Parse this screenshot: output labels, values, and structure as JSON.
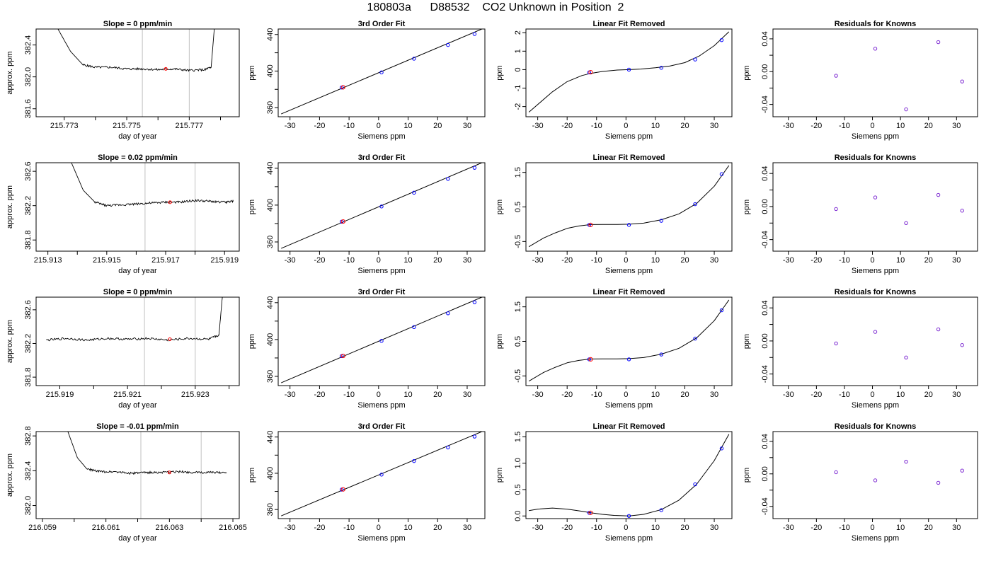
{
  "page": {
    "title": "180803a      D88532    CO2 Unknown in Position  2"
  },
  "colors": {
    "axis": "#000000",
    "line": "#000000",
    "marker_blue": "#0000ff",
    "marker_red": "#ff0000",
    "marker_purple": "#7d2ad2",
    "vline": "#c0c0c0"
  },
  "chart_data": [
    {
      "type": "line",
      "title": "Slope =  0  ppm/min",
      "xlabel": "day of year",
      "ylabel": "approx. ppm",
      "xlim": [
        215.7721,
        215.7786
      ],
      "ylim": [
        381.5,
        382.6
      ],
      "xticks": [
        215.773,
        215.774,
        215.775,
        215.776,
        215.777,
        215.778
      ],
      "xtick_labels": [
        "215.773",
        "",
        "215.775",
        "",
        "215.777",
        ""
      ],
      "yticks": [
        381.6,
        382.0,
        382.4
      ],
      "ytick_labels": [
        "381.6",
        "382.0",
        "382.4"
      ],
      "vlines": [
        215.7755,
        215.777
      ],
      "line": {
        "x": [
          215.7728,
          215.7732,
          215.7736,
          215.774,
          215.7745,
          215.775,
          215.7755,
          215.776,
          215.7765,
          215.777,
          215.7775,
          215.7777,
          215.7778
        ],
        "y": [
          382.6,
          382.32,
          382.15,
          382.12,
          382.12,
          382.1,
          382.1,
          382.09,
          382.1,
          382.08,
          382.09,
          382.12,
          382.6
        ]
      },
      "marker": {
        "x": 215.77625,
        "y": 382.1
      }
    },
    {
      "type": "scatter",
      "title": "3rd Order Fit",
      "xlabel": "Siemens ppm",
      "ylabel": "ppm",
      "xlim": [
        -34,
        36
      ],
      "ylim": [
        350,
        446
      ],
      "xticks": [
        -30,
        -20,
        -10,
        0,
        10,
        20,
        30
      ],
      "xtick_labels": [
        "-30",
        "-20",
        "-10",
        "0",
        "10",
        "20",
        "30"
      ],
      "yticks": [
        360,
        380,
        400,
        420,
        440
      ],
      "ytick_labels": [
        "360",
        "",
        "400",
        "",
        "440"
      ],
      "fit_line": {
        "x": [
          -33,
          35
        ],
        "y": [
          353,
          446
        ]
      },
      "knowns": {
        "x": [
          -12.5,
          1,
          12,
          23.5,
          32.5
        ],
        "y": [
          382,
          398.5,
          413.5,
          428.5,
          440.5
        ]
      },
      "unknown": {
        "x": -12,
        "y": 382.2
      }
    },
    {
      "type": "scatter",
      "title": "Linear Fit Removed",
      "xlabel": "Siemens ppm",
      "ylabel": "ppm",
      "xlim": [
        -34,
        36
      ],
      "ylim": [
        -2.55,
        2.2
      ],
      "xticks": [
        -30,
        -20,
        -10,
        0,
        10,
        20,
        30
      ],
      "xtick_labels": [
        "-30",
        "-20",
        "-10",
        "0",
        "10",
        "20",
        "30"
      ],
      "yticks": [
        -2,
        -1,
        0,
        1,
        2
      ],
      "ytick_labels": [
        "-2",
        "-1",
        "0",
        "1",
        "2"
      ],
      "curve": {
        "x": [
          -33,
          -25,
          -20,
          -15,
          -12,
          -8,
          -3,
          1,
          5,
          10,
          15,
          20,
          25,
          30,
          35
        ],
        "y": [
          -2.3,
          -1.2,
          -0.65,
          -0.32,
          -0.2,
          -0.1,
          -0.02,
          0.0,
          0.03,
          0.1,
          0.2,
          0.38,
          0.75,
          1.3,
          2.05
        ]
      },
      "knowns": {
        "x": [
          -12.5,
          1,
          12,
          23.5,
          32.5
        ],
        "y": [
          -0.15,
          0.0,
          0.1,
          0.55,
          1.6
        ]
      },
      "unknown": {
        "x": -12,
        "y": -0.14
      }
    },
    {
      "type": "scatter",
      "title": "Residuals for Knowns",
      "xlabel": "Siemens ppm",
      "ylabel": "ppm",
      "xlim": [
        -35.5,
        37.5
      ],
      "ylim": [
        -0.055,
        0.052
      ],
      "xticks": [
        -30,
        -20,
        -10,
        0,
        10,
        20,
        30
      ],
      "xtick_labels": [
        "-30",
        "-20",
        "-10",
        "0",
        "10",
        "20",
        "30"
      ],
      "yticks": [
        -0.04,
        -0.02,
        0.0,
        0.02,
        0.04
      ],
      "ytick_labels": [
        "-0.04",
        "",
        "0.00",
        "",
        "0.04"
      ],
      "points": {
        "x": [
          -13,
          1,
          12,
          23.5,
          32
        ],
        "y": [
          -0.005,
          0.028,
          -0.046,
          0.036,
          -0.012
        ]
      }
    },
    {
      "type": "line",
      "title": "Slope =  0.02  ppm/min",
      "xlabel": "day of year",
      "ylabel": "approx. ppm",
      "xlim": [
        215.9126,
        215.9195
      ],
      "ylim": [
        381.67,
        382.7
      ],
      "xticks": [
        215.913,
        215.914,
        215.915,
        215.916,
        215.917,
        215.918,
        215.919
      ],
      "xtick_labels": [
        "215.913",
        "",
        "215.915",
        "",
        "215.917",
        "",
        "215.919"
      ],
      "yticks": [
        381.8,
        382.2,
        382.6
      ],
      "ytick_labels": [
        "381.8",
        "382.2",
        "382.6"
      ],
      "vlines": [
        215.9163,
        215.918
      ],
      "line": {
        "x": [
          215.9138,
          215.9142,
          215.9146,
          215.915,
          215.9155,
          215.916,
          215.9165,
          215.917,
          215.9175,
          215.918,
          215.9185,
          215.919,
          215.9193
        ],
        "y": [
          382.7,
          382.38,
          382.24,
          382.2,
          382.21,
          382.22,
          382.23,
          382.24,
          382.24,
          382.26,
          382.25,
          382.24,
          382.25
        ]
      },
      "marker": {
        "x": 215.91715,
        "y": 382.24
      }
    },
    {
      "type": "scatter",
      "title": "3rd Order Fit",
      "xlabel": "Siemens ppm",
      "ylabel": "ppm",
      "xlim": [
        -34,
        36
      ],
      "ylim": [
        350,
        446
      ],
      "xticks": [
        -30,
        -20,
        -10,
        0,
        10,
        20,
        30
      ],
      "xtick_labels": [
        "-30",
        "-20",
        "-10",
        "0",
        "10",
        "20",
        "30"
      ],
      "yticks": [
        360,
        380,
        400,
        420,
        440
      ],
      "ytick_labels": [
        "360",
        "",
        "400",
        "",
        "440"
      ],
      "fit_line": {
        "x": [
          -33,
          35
        ],
        "y": [
          353,
          446
        ]
      },
      "knowns": {
        "x": [
          -12.5,
          1,
          12,
          23.5,
          32.5
        ],
        "y": [
          382,
          398.5,
          413.5,
          428.5,
          440.5
        ]
      },
      "unknown": {
        "x": -12,
        "y": 382.2
      }
    },
    {
      "type": "scatter",
      "title": "Linear Fit Removed",
      "xlabel": "Siemens ppm",
      "ylabel": "ppm",
      "xlim": [
        -34,
        36
      ],
      "ylim": [
        -0.78,
        1.78
      ],
      "xticks": [
        -30,
        -20,
        -10,
        0,
        10,
        20,
        30
      ],
      "xtick_labels": [
        "-30",
        "-20",
        "-10",
        "0",
        "10",
        "20",
        "30"
      ],
      "yticks": [
        -0.5,
        0.5,
        1.5
      ],
      "ytick_labels": [
        "-0.5",
        "0.5",
        "1.5"
      ],
      "curve": {
        "x": [
          -33,
          -28,
          -24,
          -20,
          -16,
          -12,
          -8,
          -3,
          1,
          6,
          12,
          18,
          24,
          30,
          35
        ],
        "y": [
          -0.65,
          -0.4,
          -0.25,
          -0.12,
          -0.05,
          -0.01,
          -0.005,
          -0.005,
          0.0,
          0.03,
          0.13,
          0.3,
          0.6,
          1.1,
          1.7
        ]
      },
      "knowns": {
        "x": [
          -12.5,
          1,
          12,
          23.5,
          32.5
        ],
        "y": [
          -0.02,
          -0.02,
          0.1,
          0.58,
          1.45
        ]
      },
      "unknown": {
        "x": -12,
        "y": -0.02
      }
    },
    {
      "type": "scatter",
      "title": "Residuals for Knowns",
      "xlabel": "Siemens ppm",
      "ylabel": "ppm",
      "xlim": [
        -35.5,
        37.5
      ],
      "ylim": [
        -0.054,
        0.053
      ],
      "xticks": [
        -30,
        -20,
        -10,
        0,
        10,
        20,
        30
      ],
      "xtick_labels": [
        "-30",
        "-20",
        "-10",
        "0",
        "10",
        "20",
        "30"
      ],
      "yticks": [
        -0.04,
        -0.02,
        0.0,
        0.02,
        0.04
      ],
      "ytick_labels": [
        "-0.04",
        "",
        "0.00",
        "",
        "0.04"
      ],
      "points": {
        "x": [
          -13,
          1,
          12,
          23.5,
          32
        ],
        "y": [
          -0.003,
          0.011,
          -0.02,
          0.014,
          -0.005
        ]
      }
    },
    {
      "type": "line",
      "title": "Slope =  0  ppm/min",
      "xlabel": "day of year",
      "ylabel": "approx. ppm",
      "xlim": [
        215.9183,
        215.9243
      ],
      "ylim": [
        381.7,
        382.75
      ],
      "xticks": [
        215.919,
        215.92,
        215.921,
        215.922,
        215.923,
        215.924
      ],
      "xtick_labels": [
        "215.919",
        "",
        "215.921",
        "",
        "215.923",
        ""
      ],
      "yticks": [
        381.8,
        382.2,
        382.6
      ],
      "ytick_labels": [
        "381.8",
        "382.2",
        "382.6"
      ],
      "vlines": [
        215.9215,
        215.923
      ],
      "line": {
        "x": [
          215.9186,
          215.9192,
          215.9198,
          215.9204,
          215.921,
          215.9216,
          215.9222,
          215.9228,
          215.9234,
          215.9237,
          215.9238
        ],
        "y": [
          382.24,
          382.26,
          382.24,
          382.26,
          382.25,
          382.26,
          382.24,
          382.26,
          382.25,
          382.3,
          382.75
        ]
      },
      "marker": {
        "x": 215.92225,
        "y": 382.25
      }
    },
    {
      "type": "scatter",
      "title": "3rd Order Fit",
      "xlabel": "Siemens ppm",
      "ylabel": "ppm",
      "xlim": [
        -34,
        36
      ],
      "ylim": [
        350,
        446
      ],
      "xticks": [
        -30,
        -20,
        -10,
        0,
        10,
        20,
        30
      ],
      "xtick_labels": [
        "-30",
        "-20",
        "-10",
        "0",
        "10",
        "20",
        "30"
      ],
      "yticks": [
        360,
        380,
        400,
        420,
        440
      ],
      "ytick_labels": [
        "360",
        "",
        "400",
        "",
        "440"
      ],
      "fit_line": {
        "x": [
          -33,
          35
        ],
        "y": [
          353,
          446
        ]
      },
      "knowns": {
        "x": [
          -12.5,
          1,
          12,
          23.5,
          32.5
        ],
        "y": [
          382,
          398.5,
          413.5,
          428.5,
          440.5
        ]
      },
      "unknown": {
        "x": -12,
        "y": 382.2
      }
    },
    {
      "type": "scatter",
      "title": "Linear Fit Removed",
      "xlabel": "Siemens ppm",
      "ylabel": "ppm",
      "xlim": [
        -34,
        36
      ],
      "ylim": [
        -0.78,
        1.78
      ],
      "xticks": [
        -30,
        -20,
        -10,
        0,
        10,
        20,
        30
      ],
      "xtick_labels": [
        "-30",
        "-20",
        "-10",
        "0",
        "10",
        "20",
        "30"
      ],
      "yticks": [
        -0.5,
        0.5,
        1.5
      ],
      "ytick_labels": [
        "-0.5",
        "0.5",
        "1.5"
      ],
      "curve": {
        "x": [
          -33,
          -28,
          -24,
          -20,
          -16,
          -12,
          -8,
          -3,
          1,
          6,
          12,
          18,
          24,
          30,
          35
        ],
        "y": [
          -0.65,
          -0.4,
          -0.25,
          -0.12,
          -0.05,
          -0.01,
          -0.005,
          -0.005,
          0.0,
          0.03,
          0.13,
          0.3,
          0.6,
          1.1,
          1.7
        ]
      },
      "knowns": {
        "x": [
          -12.5,
          1,
          12,
          23.5,
          32.5
        ],
        "y": [
          -0.02,
          -0.02,
          0.12,
          0.58,
          1.4
        ]
      },
      "unknown": {
        "x": -12,
        "y": -0.02
      }
    },
    {
      "type": "scatter",
      "title": "Residuals for Knowns",
      "xlabel": "Siemens ppm",
      "ylabel": "ppm",
      "xlim": [
        -35.5,
        37.5
      ],
      "ylim": [
        -0.054,
        0.053
      ],
      "xticks": [
        -30,
        -20,
        -10,
        0,
        10,
        20,
        30
      ],
      "xtick_labels": [
        "-30",
        "-20",
        "-10",
        "0",
        "10",
        "20",
        "30"
      ],
      "yticks": [
        -0.04,
        -0.02,
        0.0,
        0.02,
        0.04
      ],
      "ytick_labels": [
        "-0.04",
        "",
        "0.00",
        "",
        "0.04"
      ],
      "points": {
        "x": [
          -13,
          1,
          12,
          23.5,
          32
        ],
        "y": [
          -0.003,
          0.011,
          -0.02,
          0.014,
          -0.005
        ]
      }
    },
    {
      "type": "line",
      "title": "Slope =  -0.01  ppm/min",
      "xlabel": "day of year",
      "ylabel": "approx. ppm",
      "xlim": [
        216.0588,
        216.0652
      ],
      "ylim": [
        381.85,
        382.85
      ],
      "xticks": [
        216.059,
        216.06,
        216.061,
        216.062,
        216.063,
        216.064,
        216.065
      ],
      "xtick_labels": [
        "216.059",
        "",
        "216.061",
        "",
        "216.063",
        "",
        "216.065"
      ],
      "yticks": [
        382.0,
        382.4,
        382.8
      ],
      "ytick_labels": [
        "382.0",
        "382.4",
        "382.8"
      ],
      "vlines": [
        216.0621,
        216.064
      ],
      "line": {
        "x": [
          216.0598,
          216.0601,
          216.0604,
          216.0608,
          216.0613,
          216.0618,
          216.0623,
          216.0628,
          216.0633,
          216.0638,
          216.0643,
          216.0648
        ],
        "y": [
          382.85,
          382.55,
          382.42,
          382.39,
          382.39,
          382.37,
          382.38,
          382.38,
          382.39,
          382.38,
          382.38,
          382.38
        ]
      },
      "marker": {
        "x": 216.063,
        "y": 382.38
      }
    },
    {
      "type": "scatter",
      "title": "3rd Order Fit",
      "xlabel": "Siemens ppm",
      "ylabel": "ppm",
      "xlim": [
        -34,
        36
      ],
      "ylim": [
        350,
        446
      ],
      "xticks": [
        -30,
        -20,
        -10,
        0,
        10,
        20,
        30
      ],
      "xtick_labels": [
        "-30",
        "-20",
        "-10",
        "0",
        "10",
        "20",
        "30"
      ],
      "yticks": [
        360,
        380,
        400,
        420,
        440
      ],
      "ytick_labels": [
        "360",
        "",
        "400",
        "",
        "440"
      ],
      "fit_line": {
        "x": [
          -33,
          35
        ],
        "y": [
          353,
          446
        ]
      },
      "knowns": {
        "x": [
          -12.5,
          1,
          12,
          23.5,
          32.5
        ],
        "y": [
          382,
          398.5,
          413.5,
          428.5,
          440.5
        ]
      },
      "unknown": {
        "x": -12,
        "y": 382.2
      }
    },
    {
      "type": "scatter",
      "title": "Linear Fit Removed",
      "xlabel": "Siemens ppm",
      "ylabel": "ppm",
      "xlim": [
        -34,
        36
      ],
      "ylim": [
        -0.05,
        1.6
      ],
      "xticks": [
        -30,
        -20,
        -10,
        0,
        10,
        20,
        30
      ],
      "xtick_labels": [
        "-30",
        "-20",
        "-10",
        "0",
        "10",
        "20",
        "30"
      ],
      "yticks": [
        0.0,
        0.5,
        1.0,
        1.5
      ],
      "ytick_labels": [
        "0.0",
        "0.5",
        "1.0",
        "1.5"
      ],
      "curve": {
        "x": [
          -33,
          -30,
          -25,
          -20,
          -15,
          -12,
          -8,
          -4,
          1,
          6,
          12,
          18,
          24,
          30,
          35
        ],
        "y": [
          0.1,
          0.13,
          0.15,
          0.13,
          0.09,
          0.06,
          0.03,
          0.01,
          0.0,
          0.03,
          0.12,
          0.3,
          0.6,
          1.05,
          1.55
        ]
      },
      "knowns": {
        "x": [
          -12.5,
          1,
          12,
          23.5,
          32.5
        ],
        "y": [
          0.06,
          0.0,
          0.11,
          0.6,
          1.28
        ]
      },
      "unknown": {
        "x": -12,
        "y": 0.06
      }
    },
    {
      "type": "scatter",
      "title": "Residuals for Knowns",
      "xlabel": "Siemens ppm",
      "ylabel": "ppm",
      "xlim": [
        -35.5,
        37.5
      ],
      "ylim": [
        -0.055,
        0.052
      ],
      "xticks": [
        -30,
        -20,
        -10,
        0,
        10,
        20,
        30
      ],
      "xtick_labels": [
        "-30",
        "-20",
        "-10",
        "0",
        "10",
        "20",
        "30"
      ],
      "yticks": [
        -0.04,
        -0.02,
        0.0,
        0.02,
        0.04
      ],
      "ytick_labels": [
        "-0.04",
        "",
        "0.00",
        "",
        "0.04"
      ],
      "points": {
        "x": [
          -13,
          1,
          12,
          23.5,
          32
        ],
        "y": [
          0.002,
          -0.008,
          0.015,
          -0.011,
          0.004
        ]
      }
    }
  ]
}
